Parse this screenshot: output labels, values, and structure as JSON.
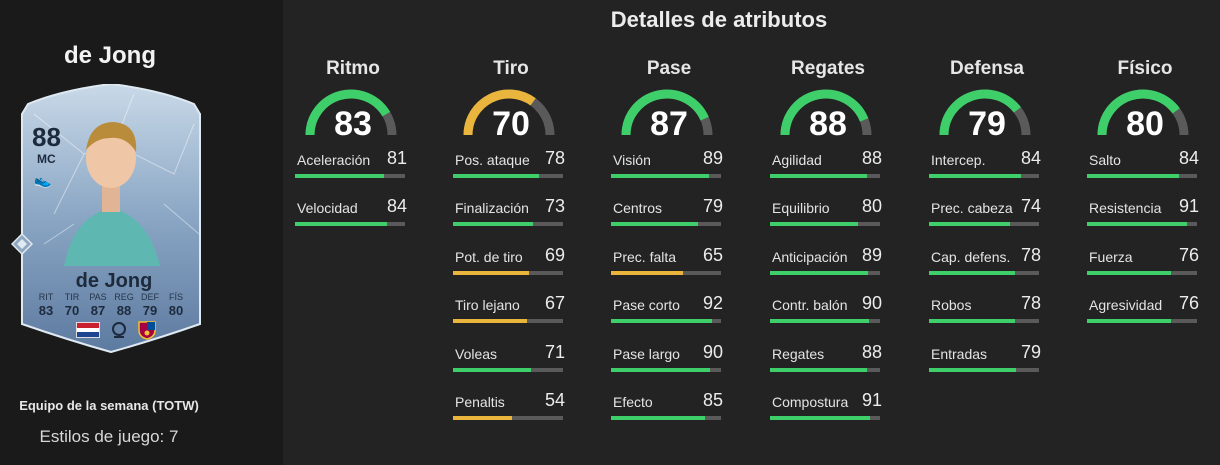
{
  "sidebar": {
    "player_name": "de Jong",
    "team_label": "Equipo de la semana (TOTW)",
    "styles_label": "Estilos de juego: 7",
    "card": {
      "rating": "88",
      "position": "MC",
      "name": "de Jong",
      "stats": [
        {
          "label": "RIT",
          "value": "83"
        },
        {
          "label": "TIR",
          "value": "70"
        },
        {
          "label": "PAS",
          "value": "87"
        },
        {
          "label": "REG",
          "value": "88"
        },
        {
          "label": "DEF",
          "value": "79"
        },
        {
          "label": "FÍS",
          "value": "80"
        }
      ]
    }
  },
  "main": {
    "title": "Detalles de atributos",
    "colors": {
      "green": "#3fcf6a",
      "yellow": "#e9b53c",
      "track": "#5a5a5a"
    },
    "categories": [
      {
        "name": "Ritmo",
        "value": 83,
        "stats": [
          {
            "label": "Aceleración",
            "value": 81
          },
          {
            "label": "Velocidad",
            "value": 84
          }
        ]
      },
      {
        "name": "Tiro",
        "value": 70,
        "stats": [
          {
            "label": "Pos. ataque",
            "value": 78
          },
          {
            "label": "Finalización",
            "value": 73
          },
          {
            "label": "Pot. de tiro",
            "value": 69
          },
          {
            "label": "Tiro lejano",
            "value": 67
          },
          {
            "label": "Voleas",
            "value": 71
          },
          {
            "label": "Penaltis",
            "value": 54
          }
        ]
      },
      {
        "name": "Pase",
        "value": 87,
        "stats": [
          {
            "label": "Visión",
            "value": 89
          },
          {
            "label": "Centros",
            "value": 79
          },
          {
            "label": "Prec. falta",
            "value": 65
          },
          {
            "label": "Pase corto",
            "value": 92
          },
          {
            "label": "Pase largo",
            "value": 90
          },
          {
            "label": "Efecto",
            "value": 85
          }
        ]
      },
      {
        "name": "Regates",
        "value": 88,
        "stats": [
          {
            "label": "Agilidad",
            "value": 88
          },
          {
            "label": "Equilibrio",
            "value": 80
          },
          {
            "label": "Anticipación",
            "value": 89
          },
          {
            "label": "Contr. balón",
            "value": 90
          },
          {
            "label": "Regates",
            "value": 88
          },
          {
            "label": "Compostura",
            "value": 91
          }
        ]
      },
      {
        "name": "Defensa",
        "value": 79,
        "stats": [
          {
            "label": "Intercep.",
            "value": 84
          },
          {
            "label": "Prec. cabeza",
            "value": 74
          },
          {
            "label": "Cap. defens.",
            "value": 78
          },
          {
            "label": "Robos",
            "value": 78
          },
          {
            "label": "Entradas",
            "value": 79
          }
        ]
      },
      {
        "name": "Físico",
        "value": 80,
        "stats": [
          {
            "label": "Salto",
            "value": 84
          },
          {
            "label": "Resistencia",
            "value": 91
          },
          {
            "label": "Fuerza",
            "value": 76
          },
          {
            "label": "Agresividad",
            "value": 76
          }
        ]
      }
    ]
  }
}
